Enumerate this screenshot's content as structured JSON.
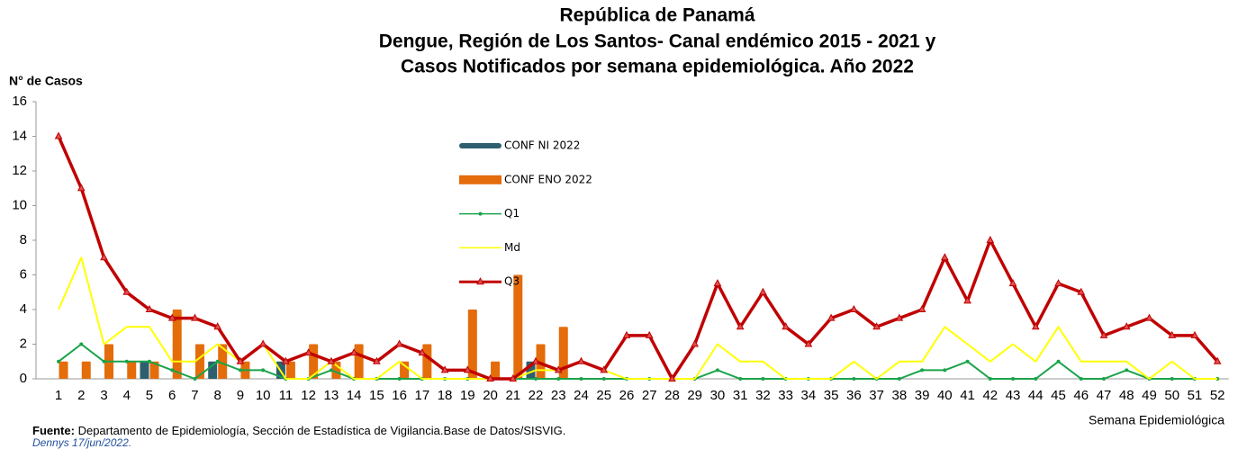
{
  "chart_data": {
    "type": "combo",
    "title": [
      "República de Panamá",
      "Dengue, Región de Los Santos- Canal endémico 2015 - 2021 y",
      "Casos Notificados por semana epidemiológica. Año 2022"
    ],
    "ylabel": "N° de Casos",
    "xlabel": "Semana Epidemiológica",
    "categories": [
      "1",
      "2",
      "3",
      "4",
      "5",
      "6",
      "7",
      "8",
      "9",
      "10",
      "11",
      "12",
      "13",
      "14",
      "15",
      "16",
      "17",
      "18",
      "19",
      "20",
      "21",
      "22",
      "23",
      "24",
      "25",
      "26",
      "27",
      "28",
      "29",
      "30",
      "31",
      "32",
      "33",
      "34",
      "35",
      "36",
      "37",
      "38",
      "39",
      "40",
      "41",
      "42",
      "43",
      "44",
      "45",
      "46",
      "47",
      "48",
      "49",
      "50",
      "51",
      "52"
    ],
    "ylim": [
      0,
      16
    ],
    "yticks": [
      0,
      2,
      4,
      6,
      8,
      10,
      12,
      14,
      16
    ],
    "legend": "center",
    "series": [
      {
        "name": "CONF NI 2022",
        "type": "bar",
        "color": "#2e5f6e",
        "values": [
          0,
          0,
          0,
          0,
          1,
          0,
          0,
          1,
          0,
          0,
          1,
          0,
          0,
          0,
          0,
          0,
          0,
          0,
          0,
          0,
          0,
          1,
          0,
          0,
          0,
          0,
          0,
          0,
          0,
          0,
          0,
          0,
          0,
          0,
          0,
          0,
          0,
          0,
          0,
          0,
          0,
          0,
          0,
          0,
          0,
          0,
          0,
          0,
          0,
          0,
          0,
          0
        ]
      },
      {
        "name": "CONF ENO 2022",
        "type": "bar",
        "color": "#e46c0a",
        "values": [
          1,
          1,
          2,
          1,
          1,
          4,
          2,
          2,
          1,
          0,
          1,
          2,
          1,
          2,
          0,
          1,
          2,
          0,
          4,
          1,
          6,
          2,
          3,
          0,
          0,
          0,
          0,
          0,
          0,
          0,
          0,
          0,
          0,
          0,
          0,
          0,
          0,
          0,
          0,
          0,
          0,
          0,
          0,
          0,
          0,
          0,
          0,
          0,
          0,
          0,
          0,
          0
        ]
      },
      {
        "name": "Q1",
        "type": "line",
        "marker": "circle",
        "color": "#1aa34a",
        "values": [
          1,
          2,
          1,
          1,
          1,
          0.5,
          0,
          1,
          0.5,
          0.5,
          0,
          0,
          0.5,
          0,
          0,
          0,
          0,
          0,
          0,
          0,
          0,
          0,
          0,
          0,
          0,
          0,
          0,
          0,
          0,
          0.5,
          0,
          0,
          0,
          0,
          0,
          0,
          0,
          0,
          0.5,
          0.5,
          1,
          0,
          0,
          0,
          1,
          0,
          0,
          0.5,
          0,
          0,
          0,
          0
        ]
      },
      {
        "name": "Md",
        "type": "line",
        "marker": "none",
        "color": "#ffff00",
        "values": [
          4,
          7,
          2,
          3,
          3,
          1,
          1,
          2,
          1,
          2,
          0,
          0,
          1,
          0,
          0,
          1,
          0,
          0,
          0,
          0,
          0,
          0.5,
          0.5,
          1,
          0.5,
          0,
          0,
          0,
          0,
          2,
          1,
          1,
          0,
          0,
          0,
          1,
          0,
          1,
          1,
          3,
          2,
          1,
          2,
          1,
          3,
          1,
          1,
          1,
          0,
          1,
          0,
          0
        ]
      },
      {
        "name": "Q3",
        "type": "line",
        "marker": "triangle",
        "color": "#c00000",
        "values": [
          14,
          11,
          7,
          5,
          4,
          3.5,
          3.5,
          3,
          1,
          2,
          1,
          1.5,
          1,
          1.5,
          1,
          2,
          1.5,
          0.5,
          0.5,
          0,
          0,
          1,
          0.5,
          1,
          0.5,
          2.5,
          2.5,
          0,
          2,
          5.5,
          3,
          5,
          3,
          2,
          3.5,
          4,
          3,
          3.5,
          4,
          7,
          4.5,
          8,
          5.5,
          3,
          5.5,
          5,
          2.5,
          3,
          3.5,
          2.5,
          2.5,
          1
        ]
      }
    ]
  },
  "footer": {
    "source_label": "Fuente:",
    "source_text": "Departamento de Epidemiología, Sección de Estadística de Vigilancia.Base de Datos/SISVIG.",
    "author": "Dennys  17/jun/2022."
  }
}
